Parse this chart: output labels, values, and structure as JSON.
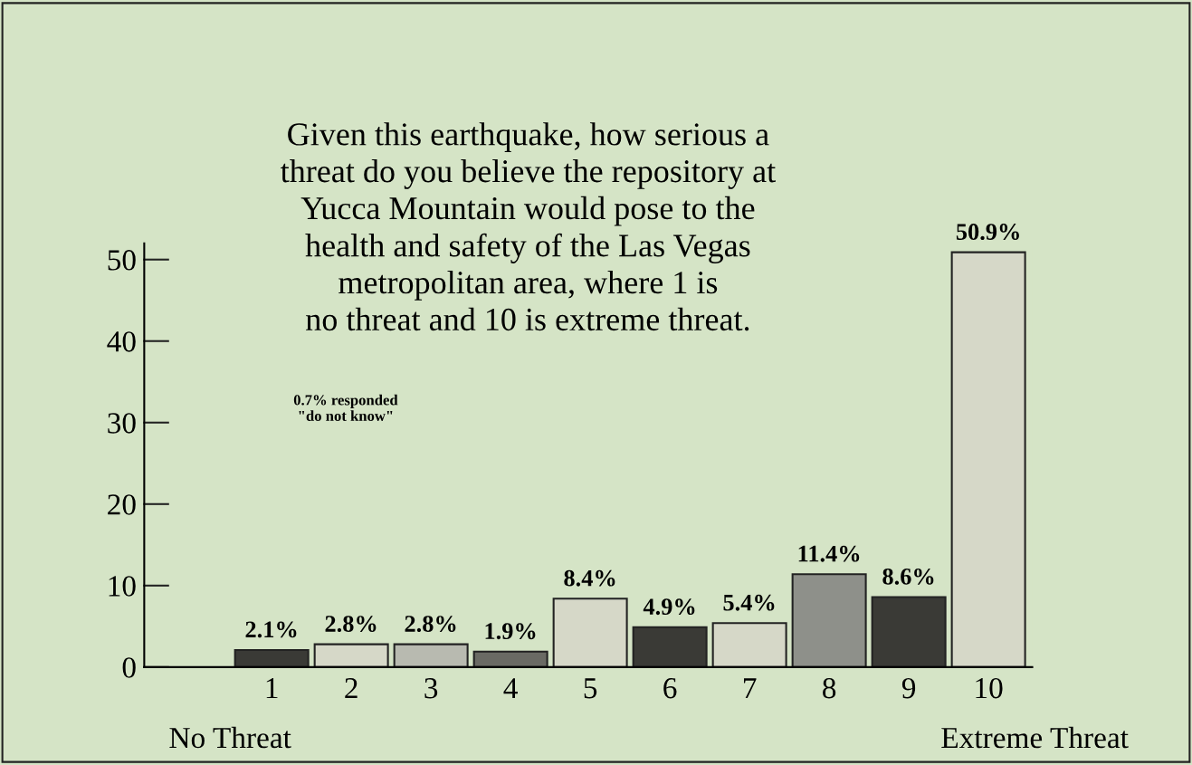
{
  "chart_data": {
    "type": "bar",
    "title": "Given this earthquake, how serious a\nthreat do you believe the repository at\nYucca Mountain would pose to the\nhealth and safety of the Las Vegas\nmetropolitan area, where 1 is\nno threat and 10 is extreme threat.",
    "categories": [
      "1",
      "2",
      "3",
      "4",
      "5",
      "6",
      "7",
      "8",
      "9",
      "10"
    ],
    "values": [
      2.1,
      2.8,
      2.8,
      1.9,
      8.4,
      4.9,
      5.4,
      11.4,
      8.6,
      50.9
    ],
    "value_labels": [
      "2.1%",
      "2.8%",
      "2.8%",
      "1.9%",
      "8.4%",
      "4.9%",
      "5.4%",
      "11.4%",
      "8.6%",
      "50.9%"
    ],
    "colors": [
      "#3a3a36",
      "#d6d8c8",
      "#b8bab0",
      "#6a6a64",
      "#d6d8c8",
      "#3a3a36",
      "#d6d8c8",
      "#8e908a",
      "#3a3a36",
      "#d6d8c8"
    ],
    "ylim": [
      0,
      52
    ],
    "yticks": [
      0,
      10,
      20,
      30,
      40,
      50
    ],
    "annotations": [
      "0.7% responded\n\"do not know\"",
      "No Threat",
      "Extreme Threat"
    ],
    "grid": false
  }
}
